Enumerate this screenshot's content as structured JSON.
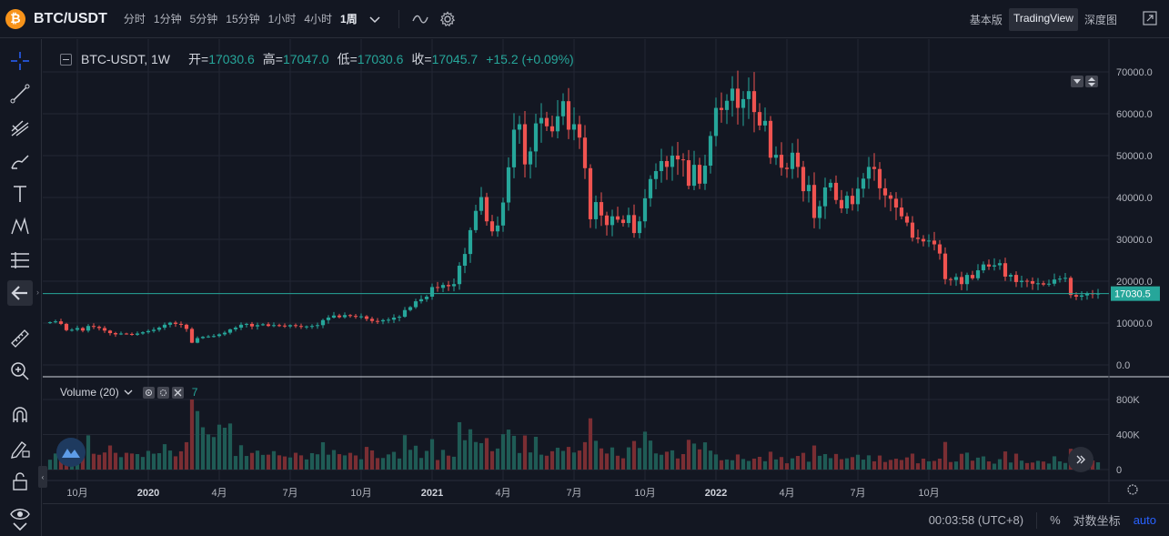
{
  "header": {
    "symbol": "BTC/USDT",
    "coin_glyph": "₿",
    "intervals": [
      "分时",
      "1分钟",
      "5分钟",
      "15分钟",
      "1小时",
      "4小时",
      "1周"
    ],
    "active_interval": "1周",
    "views": [
      "基本版",
      "TradingView",
      "深度图"
    ],
    "active_view": "TradingView"
  },
  "legend": {
    "title": "BTC-USDT, 1W",
    "open_label": "开=",
    "open": "17030.6",
    "high_label": "高=",
    "high": "17047.0",
    "low_label": "低=",
    "low": "17030.6",
    "close_label": "收=",
    "close": "17045.7",
    "change": "+15.2 (+0.09%)"
  },
  "volume_legend": {
    "title": "Volume (20)",
    "count": "7"
  },
  "price_tag": "17030.5",
  "bottom": {
    "time": "00:03:58 (UTC+8)",
    "percent": "%",
    "log": "对数坐标",
    "auto": "auto"
  },
  "colors": {
    "up": "#26a69a",
    "down": "#ef5350",
    "bg": "#131722",
    "grid": "#232734"
  },
  "chart_data": {
    "type": "candlestick",
    "price_axis": {
      "range": [
        0,
        70000
      ],
      "ticks": [
        "70000.0",
        "60000.0",
        "50000.0",
        "40000.0",
        "30000.0",
        "20000.0",
        "10000.0",
        "0.0"
      ]
    },
    "volume_axis": {
      "range": [
        0,
        800000
      ],
      "ticks": [
        "800K",
        "400K",
        "0"
      ]
    },
    "time_ticks": [
      "10月",
      "2020",
      "4月",
      "7月",
      "10月",
      "2021",
      "4月",
      "7月",
      "10月",
      "2022",
      "4月",
      "7月",
      "10月"
    ],
    "current_price": 17030.5,
    "close_approx": [
      10200,
      10400,
      9800,
      8300,
      8400,
      8800,
      8200,
      9300,
      9100,
      8800,
      8200,
      7600,
      7300,
      7500,
      7400,
      7200,
      7500,
      7800,
      8100,
      8400,
      8900,
      9600,
      10100,
      9800,
      9600,
      8600,
      5300,
      6400,
      6700,
      6800,
      6900,
      7300,
      7700,
      8500,
      8900,
      9600,
      9800,
      9200,
      9500,
      9700,
      9300,
      9500,
      9400,
      9200,
      9500,
      9300,
      9100,
      9200,
      9300,
      9500,
      10700,
      11300,
      11800,
      11400,
      11900,
      11700,
      11500,
      11600,
      11000,
      10500,
      10400,
      10700,
      10800,
      11300,
      11500,
      13100,
      13800,
      15200,
      15700,
      16300,
      18600,
      18400,
      19100,
      18800,
      19300,
      23700,
      26500,
      32200,
      36800,
      40100,
      34300,
      31900,
      33300,
      38800,
      47200,
      56200,
      57500,
      47900,
      51000,
      57700,
      59000,
      57000,
      55800,
      59400,
      63000,
      56200,
      57500,
      54300,
      47000,
      34800,
      38900,
      35700,
      33400,
      35500,
      34700,
      33900,
      35800,
      31500,
      34300,
      39800,
      44400,
      46300,
      48700,
      47300,
      50000,
      49100,
      48900,
      42800,
      47800,
      43300,
      47600,
      54700,
      61400,
      60900,
      63100,
      66000,
      61400,
      63500,
      65400,
      60400,
      57200,
      58300,
      49500,
      50200,
      47100,
      46800,
      50700,
      47300,
      41500,
      43000,
      35100,
      37900,
      42400,
      43500,
      39400,
      37400,
      40400,
      38400,
      42100,
      44500,
      47300,
      46800,
      42200,
      40500,
      39700,
      37600,
      35500,
      34000,
      30400,
      30100,
      29500,
      29700,
      28800,
      26600,
      20500,
      20300,
      21000,
      19300,
      21500,
      20700,
      22600,
      24000,
      23500,
      23800,
      24300,
      21100,
      21500,
      19800,
      20100,
      20000,
      19400,
      19500,
      19200,
      19400,
      20400,
      20600,
      20800,
      16700,
      16300,
      16600,
      17100,
      17000,
      17046
    ]
  }
}
